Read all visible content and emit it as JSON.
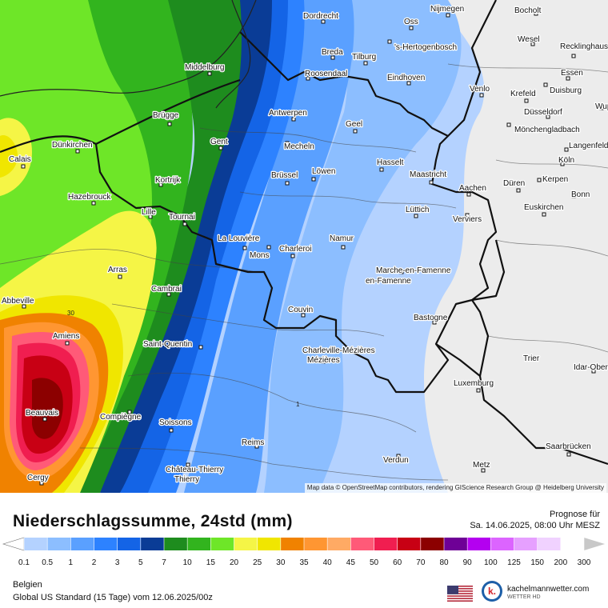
{
  "map": {
    "cities": [
      {
        "name": "Dordrecht"
      },
      {
        "name": "Nijmegen"
      },
      {
        "name": "Bocholt"
      },
      {
        "name": "Oss"
      },
      {
        "name": "Wesel"
      },
      {
        "name": "Breda"
      },
      {
        "name": "Tilburg"
      },
      {
        "name": "'s-Hertogenbosch"
      },
      {
        "name": "Recklinghausen"
      },
      {
        "name": "Middelburg"
      },
      {
        "name": "Roosendaal"
      },
      {
        "name": "Eindhoven"
      },
      {
        "name": "Essen"
      },
      {
        "name": "Duisburg"
      },
      {
        "name": "Venlo"
      },
      {
        "name": "Krefeld"
      },
      {
        "name": "Antwerpen"
      },
      {
        "name": "Brügge"
      },
      {
        "name": "Geel"
      },
      {
        "name": "Düsseldorf"
      },
      {
        "name": "Mönchengladbach"
      },
      {
        "name": "Wuppertal"
      },
      {
        "name": "Gent"
      },
      {
        "name": "Mecheln"
      },
      {
        "name": "Dünkirchen"
      },
      {
        "name": "Langenfeld"
      },
      {
        "name": "Calais"
      },
      {
        "name": "Hasselt"
      },
      {
        "name": "Kortrijk"
      },
      {
        "name": "Brüssel"
      },
      {
        "name": "Löwen"
      },
      {
        "name": "Maastricht"
      },
      {
        "name": "Köln"
      },
      {
        "name": "Düren"
      },
      {
        "name": "Kerpen"
      },
      {
        "name": "Aachen"
      },
      {
        "name": "Hazebrouck"
      },
      {
        "name": "Bonn"
      },
      {
        "name": "Lille"
      },
      {
        "name": "Tournai"
      },
      {
        "name": "Lüttich"
      },
      {
        "name": "Verviers"
      },
      {
        "name": "Euskirchen"
      },
      {
        "name": "La Louvière"
      },
      {
        "name": "Namur"
      },
      {
        "name": "Mons"
      },
      {
        "name": "Charleroi"
      },
      {
        "name": "Arras"
      },
      {
        "name": "Marche-en-Famenne"
      },
      {
        "name": "Cambrai"
      },
      {
        "name": "Abbeville"
      },
      {
        "name": "Couvin"
      },
      {
        "name": "Bastogne"
      },
      {
        "name": "Amiens"
      },
      {
        "name": "Saint-Quentin"
      },
      {
        "name": "Charleville-Mézières"
      },
      {
        "name": "Trier"
      },
      {
        "name": "Idar-Oberstein"
      },
      {
        "name": "Luxemburg"
      },
      {
        "name": "Beauvais"
      },
      {
        "name": "Compiègne"
      },
      {
        "name": "Soissons"
      },
      {
        "name": "Reims"
      },
      {
        "name": "Saarbrücken"
      },
      {
        "name": "Verdun"
      },
      {
        "name": "Château-Thierry"
      },
      {
        "name": "Metz"
      },
      {
        "name": "Cergy"
      }
    ],
    "contour_labels": [
      "30",
      "1"
    ],
    "attribution": "Map data © OpenStreetMap contributors, rendering GIScience Research Group @ Heidelberg University"
  },
  "legend": {
    "title": "Niederschlagssumme, 24std (mm)",
    "forecast_heading": "Prognose für",
    "forecast_time": "Sa. 14.06.2025, 08:00 Uhr MESZ",
    "ticks": [
      "0.1",
      "0.5",
      "1",
      "2",
      "3",
      "5",
      "7",
      "10",
      "15",
      "20",
      "25",
      "30",
      "35",
      "40",
      "45",
      "50",
      "60",
      "70",
      "80",
      "90",
      "100",
      "125",
      "150",
      "200",
      "300"
    ],
    "colors": [
      "#b4d2ff",
      "#8cbeff",
      "#5aa0ff",
      "#2d82ff",
      "#1464e6",
      "#0a3c96",
      "#1e8c1e",
      "#32b41e",
      "#6ee628",
      "#f5f546",
      "#f0e600",
      "#f08200",
      "#ff9632",
      "#ffaa64",
      "#ff5a78",
      "#f01e50",
      "#c80014",
      "#8c0000",
      "#6e0096",
      "#b400f0",
      "#dc64ff",
      "#e6a0ff",
      "#f0d2ff",
      "#ffffff",
      "#c8c8c8"
    ],
    "region": "Belgien",
    "model": "Global US Standard (15 Tage) vom  12.06.2025/00z",
    "brand": "kachelmannwetter.com",
    "brand_sub": "WETTER HD"
  }
}
